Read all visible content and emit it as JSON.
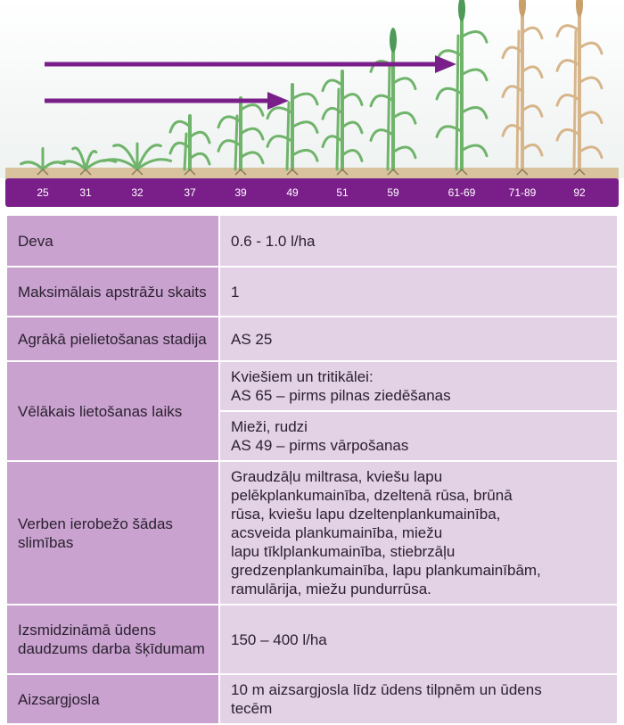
{
  "growth_stages": {
    "labels": [
      "25",
      "31",
      "32",
      "37",
      "39",
      "49",
      "51",
      "59",
      "61-69",
      "71-89",
      "92"
    ],
    "colors": {
      "bar": "#7a1f8a",
      "arrow": "#7a1f8a",
      "plant": "#6fb46a",
      "ripe_plant": "#d7b58a",
      "soil": "#d9c39f"
    }
  },
  "table": {
    "rows": [
      {
        "label": "Deva",
        "values": [
          [
            "0.6 - 1.0 l/ha"
          ]
        ]
      },
      {
        "label": "Maksimālais apstrāžu skaits",
        "values": [
          [
            "1"
          ]
        ]
      },
      {
        "label": "Agrākā pielietošanas stadija",
        "values": [
          [
            "AS 25"
          ]
        ]
      },
      {
        "label": "Vēlākais lietošanas laiks",
        "values": [
          [
            "Kviešiem un tritikālei:",
            "AS 65 – pirms pilnas ziedēšanas"
          ],
          [
            "Mieži, rudzi",
            "AS 49 – pirms vārpošanas"
          ]
        ]
      },
      {
        "label": "Verben ierobežo šādas slimības",
        "values": [
          [
            "Graudzāļu miltrasa, kviešu lapu",
            "pelēkplankumainība, dzeltenā rūsa, brūnā",
            "rūsa, kviešu lapu dzeltenplankumainība,",
            "acsveida plankumainība, miežu",
            "lapu tīklplankumainība, stiebrzāļu",
            "gredzenplankumainība, lapu plankumainībām,",
            "ramulārija, miežu pundurrūsa."
          ]
        ]
      },
      {
        "label": "Izsmidzināmā ūdens daudzums darba šķīdumam",
        "values": [
          [
            "150 – 400 l/ha"
          ]
        ]
      },
      {
        "label": "Aizsargjosla",
        "values": [
          [
            "10 m aizsargjosla līdz ūdens tilpnēm un ūdens",
            "tecēm"
          ]
        ]
      }
    ]
  }
}
